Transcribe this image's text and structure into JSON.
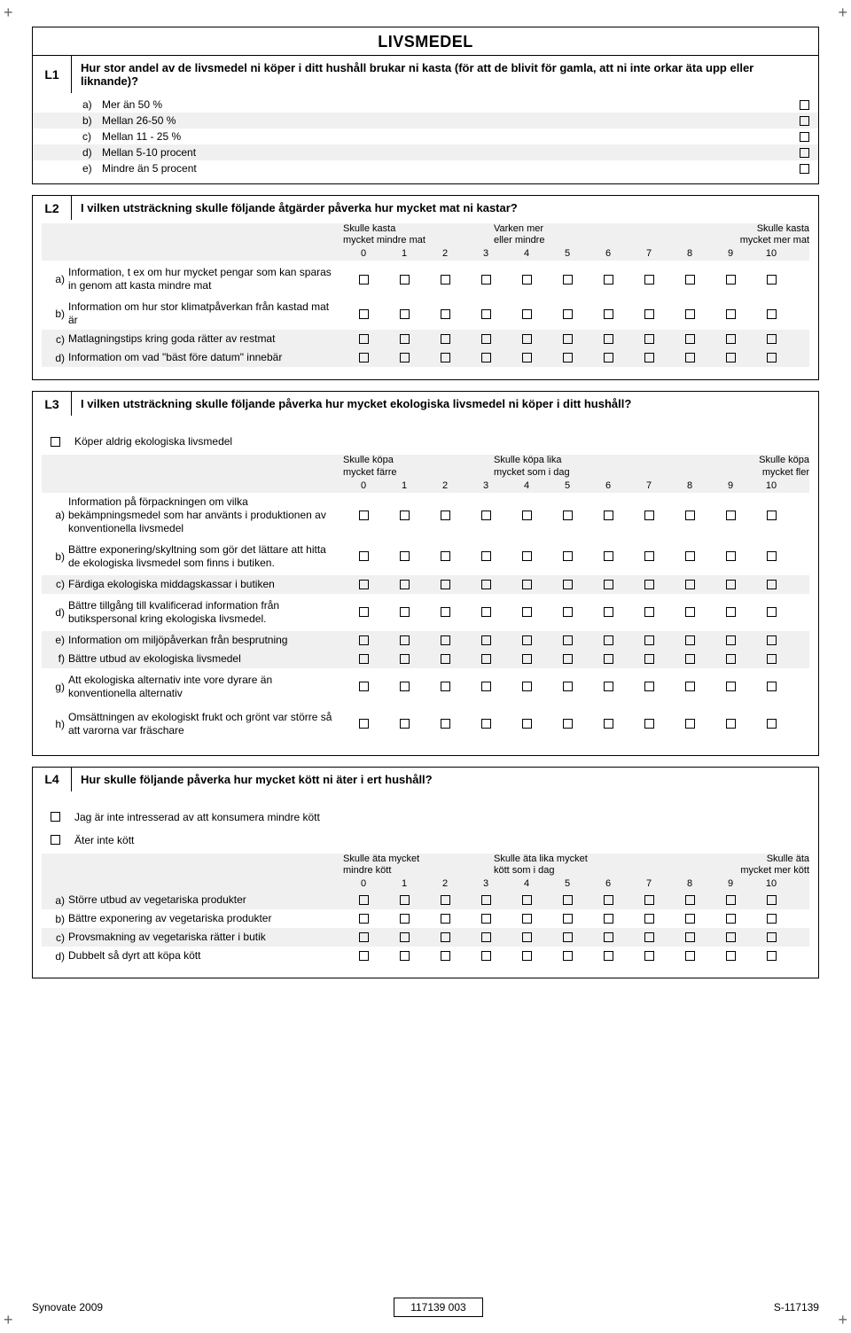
{
  "crossmarks": "+",
  "L1": {
    "code": "L1",
    "title": "LIVSMEDEL",
    "question": "Hur stor andel av de livsmedel ni köper i ditt hushåll brukar ni kasta (för att de blivit för gamla, att ni inte orkar äta upp eller liknande)?",
    "options": [
      {
        "letter": "a)",
        "text": "Mer än 50 %"
      },
      {
        "letter": "b)",
        "text": "Mellan 26-50 %"
      },
      {
        "letter": "c)",
        "text": "Mellan 11 - 25 %"
      },
      {
        "letter": "d)",
        "text": "Mellan 5-10  procent"
      },
      {
        "letter": "e)",
        "text": "Mindre än 5 procent"
      }
    ]
  },
  "L2": {
    "code": "L2",
    "question": "I vilken utsträckning skulle följande åtgärder påverka hur mycket mat ni kastar?",
    "scale_left": "Skulle kasta\nmycket mindre mat",
    "scale_mid": "Varken mer\neller mindre",
    "scale_right": "Skulle kasta\nmycket mer mat",
    "nums": [
      "0",
      "1",
      "2",
      "3",
      "4",
      "5",
      "6",
      "7",
      "8",
      "9",
      "10"
    ],
    "rows": [
      {
        "letter": "a)",
        "text": "Information, t ex om hur mycket pengar som kan sparas in genom att kasta mindre mat"
      },
      {
        "letter": "b)",
        "text": "Information om hur stor klimatpåverkan från kastad mat är"
      },
      {
        "letter": "c)",
        "text": "Matlagningstips kring goda rätter av restmat"
      },
      {
        "letter": "d)",
        "text": "Information om vad \"bäst före datum\" innebär"
      }
    ]
  },
  "L3": {
    "code": "L3",
    "question": "I vilken utsträckning skulle följande påverka hur mycket ekologiska livsmedel ni köper i ditt hushåll?",
    "pre_option": "Köper aldrig ekologiska livsmedel",
    "scale_left": "Skulle köpa\nmycket färre",
    "scale_mid": "Skulle köpa lika\nmycket som i dag",
    "scale_right": "Skulle köpa\nmycket fler",
    "nums": [
      "0",
      "1",
      "2",
      "3",
      "4",
      "5",
      "6",
      "7",
      "8",
      "9",
      "10"
    ],
    "rows": [
      {
        "letter": "a)",
        "text": "Information på förpackningen om vilka bekämpningsmedel som har använts i produktionen av konventionella livsmedel"
      },
      {
        "letter": "b)",
        "text": "Bättre exponering/skyltning som gör det lättare att hitta de ekologiska livsmedel som finns i butiken."
      },
      {
        "letter": "c)",
        "text": "Färdiga ekologiska middagskassar i butiken"
      },
      {
        "letter": "d)",
        "text": "Bättre tillgång till kvalificerad information från butikspersonal kring ekologiska livsmedel."
      },
      {
        "letter": "e)",
        "text": "Information om miljöpåverkan från besprutning"
      },
      {
        "letter": "f)",
        "text": "Bättre utbud av ekologiska livsmedel"
      },
      {
        "letter": "g)",
        "text": "Att ekologiska alternativ inte vore dyrare än konventionella alternativ"
      },
      {
        "letter": "h)",
        "text": "Omsättningen av ekologiskt frukt och grönt var större så att varorna var fräschare"
      }
    ]
  },
  "L4": {
    "code": "L4",
    "question": "Hur skulle följande påverka hur mycket kött ni äter i ert hushåll?",
    "pre_options": [
      "Jag är inte intresserad av att konsumera mindre kött",
      "Äter inte kött"
    ],
    "scale_left": "Skulle äta mycket\nmindre kött",
    "scale_mid": "Skulle äta lika mycket\nkött som i dag",
    "scale_right": "Skulle äta\nmycket mer kött",
    "nums": [
      "0",
      "1",
      "2",
      "3",
      "4",
      "5",
      "6",
      "7",
      "8",
      "9",
      "10"
    ],
    "rows": [
      {
        "letter": "a)",
        "text": "Större utbud av vegetariska produkter"
      },
      {
        "letter": "b)",
        "text": "Bättre exponering av vegetariska produkter"
      },
      {
        "letter": "c)",
        "text": "Provsmakning av vegetariska rätter i butik"
      },
      {
        "letter": "d)",
        "text": "Dubbelt så dyrt att köpa kött"
      }
    ]
  },
  "footer": {
    "left": "Synovate 2009",
    "mid": "117139 003",
    "right": "S-117139"
  }
}
